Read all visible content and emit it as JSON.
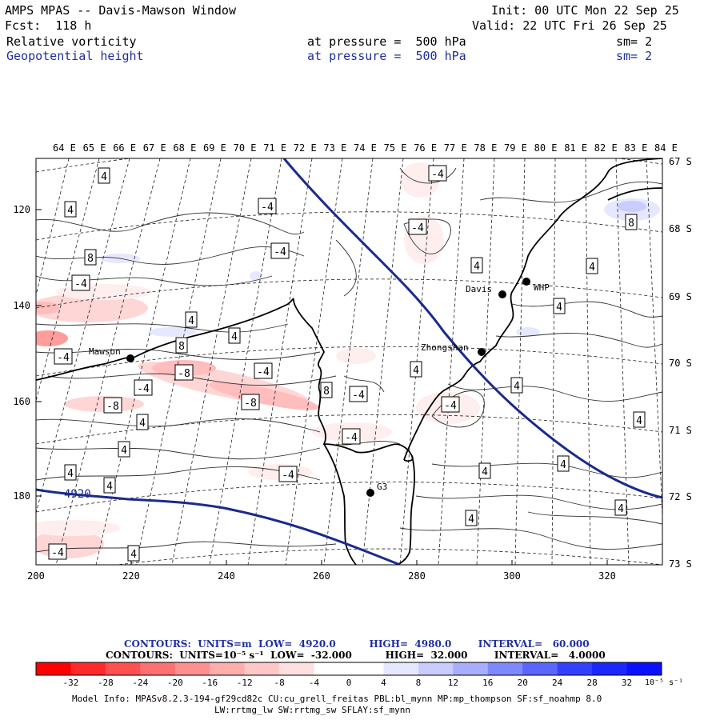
{
  "header": {
    "model_title": "AMPS MPAS -- Davis-Mawson Window",
    "init": "Init: 00 UTC Mon 22 Sep 25",
    "forecast": "Fcst:  118 h",
    "valid": "Valid: 22 UTC Fri 26 Sep 25",
    "field1_name": "Relative vorticity",
    "field1_level": "at pressure =  500 hPa",
    "field1_smooth": "sm= 2",
    "field2_name": "Geopotential height",
    "field2_level": "at pressure =  500 hPa",
    "field2_smooth": "sm= 2"
  },
  "map": {
    "lon_labels": [
      "64 E",
      "65 E",
      "66 E",
      "67 E",
      "68 E",
      "69 E",
      "70 E",
      "71 E",
      "72 E",
      "73 E",
      "74 E",
      "75 E",
      "76 E",
      "77 E",
      "78 E",
      "79 E",
      "80 E",
      "81 E",
      "82 E",
      "83 E",
      "84 E"
    ],
    "lat_labels": [
      "67 S",
      "68 S",
      "69 S",
      "70 S",
      "71 S",
      "72 S",
      "73 S"
    ],
    "y_ticks": [
      "120",
      "140",
      "160",
      "180"
    ],
    "x_ticks": [
      "200",
      "220",
      "240",
      "260",
      "280",
      "300",
      "320"
    ],
    "stations": [
      {
        "name": "Mawson"
      },
      {
        "name": "Davis"
      },
      {
        "name": "WHP"
      },
      {
        "name": "Zhongshan"
      },
      {
        "name": "G3"
      }
    ],
    "height_contour_label": "4920",
    "contour_labels": [
      "4",
      "-4",
      "-8",
      "8"
    ]
  },
  "legend": {
    "height_line": "CONTOURS:  UNITS=m  LOW=  4920.0          HIGH=  4980.0        INTERVAL=   60.000",
    "vort_line": "CONTOURS:  UNITS=10⁻⁵ s⁻¹  LOW=  -32.000          HIGH=  32.000        INTERVAL=   4.0000",
    "colorbar_labels": [
      "-32",
      "-28",
      "-24",
      "-20",
      "-16",
      "-12",
      "-8",
      "-4",
      "0",
      "4",
      "8",
      "12",
      "16",
      "20",
      "24",
      "28",
      "32"
    ],
    "colorbar_unit": "10⁻⁵ s⁻¹",
    "colors": [
      "#ff0000",
      "#ff3030",
      "#ff5c5c",
      "#ff8080",
      "#ffa0a0",
      "#ffbdbd",
      "#ffd6d6",
      "#ffeeee",
      "#ffffff",
      "#ffffff",
      "#e6e8ff",
      "#c8ccff",
      "#a8aeff",
      "#8088ff",
      "#5c66ff",
      "#3340ff",
      "#0a1aff"
    ]
  },
  "footer": {
    "model_info": "Model Info: MPASv8.2.3-194-gf29cd82c CU:cu_grell_freitas PBL:bl_mynn MP:mp_thompson SF:sf_noahmp 8.0",
    "physics": "LW:rrtmg_lw SW:rrtmg_sw SFLAY:sf_mynn"
  }
}
